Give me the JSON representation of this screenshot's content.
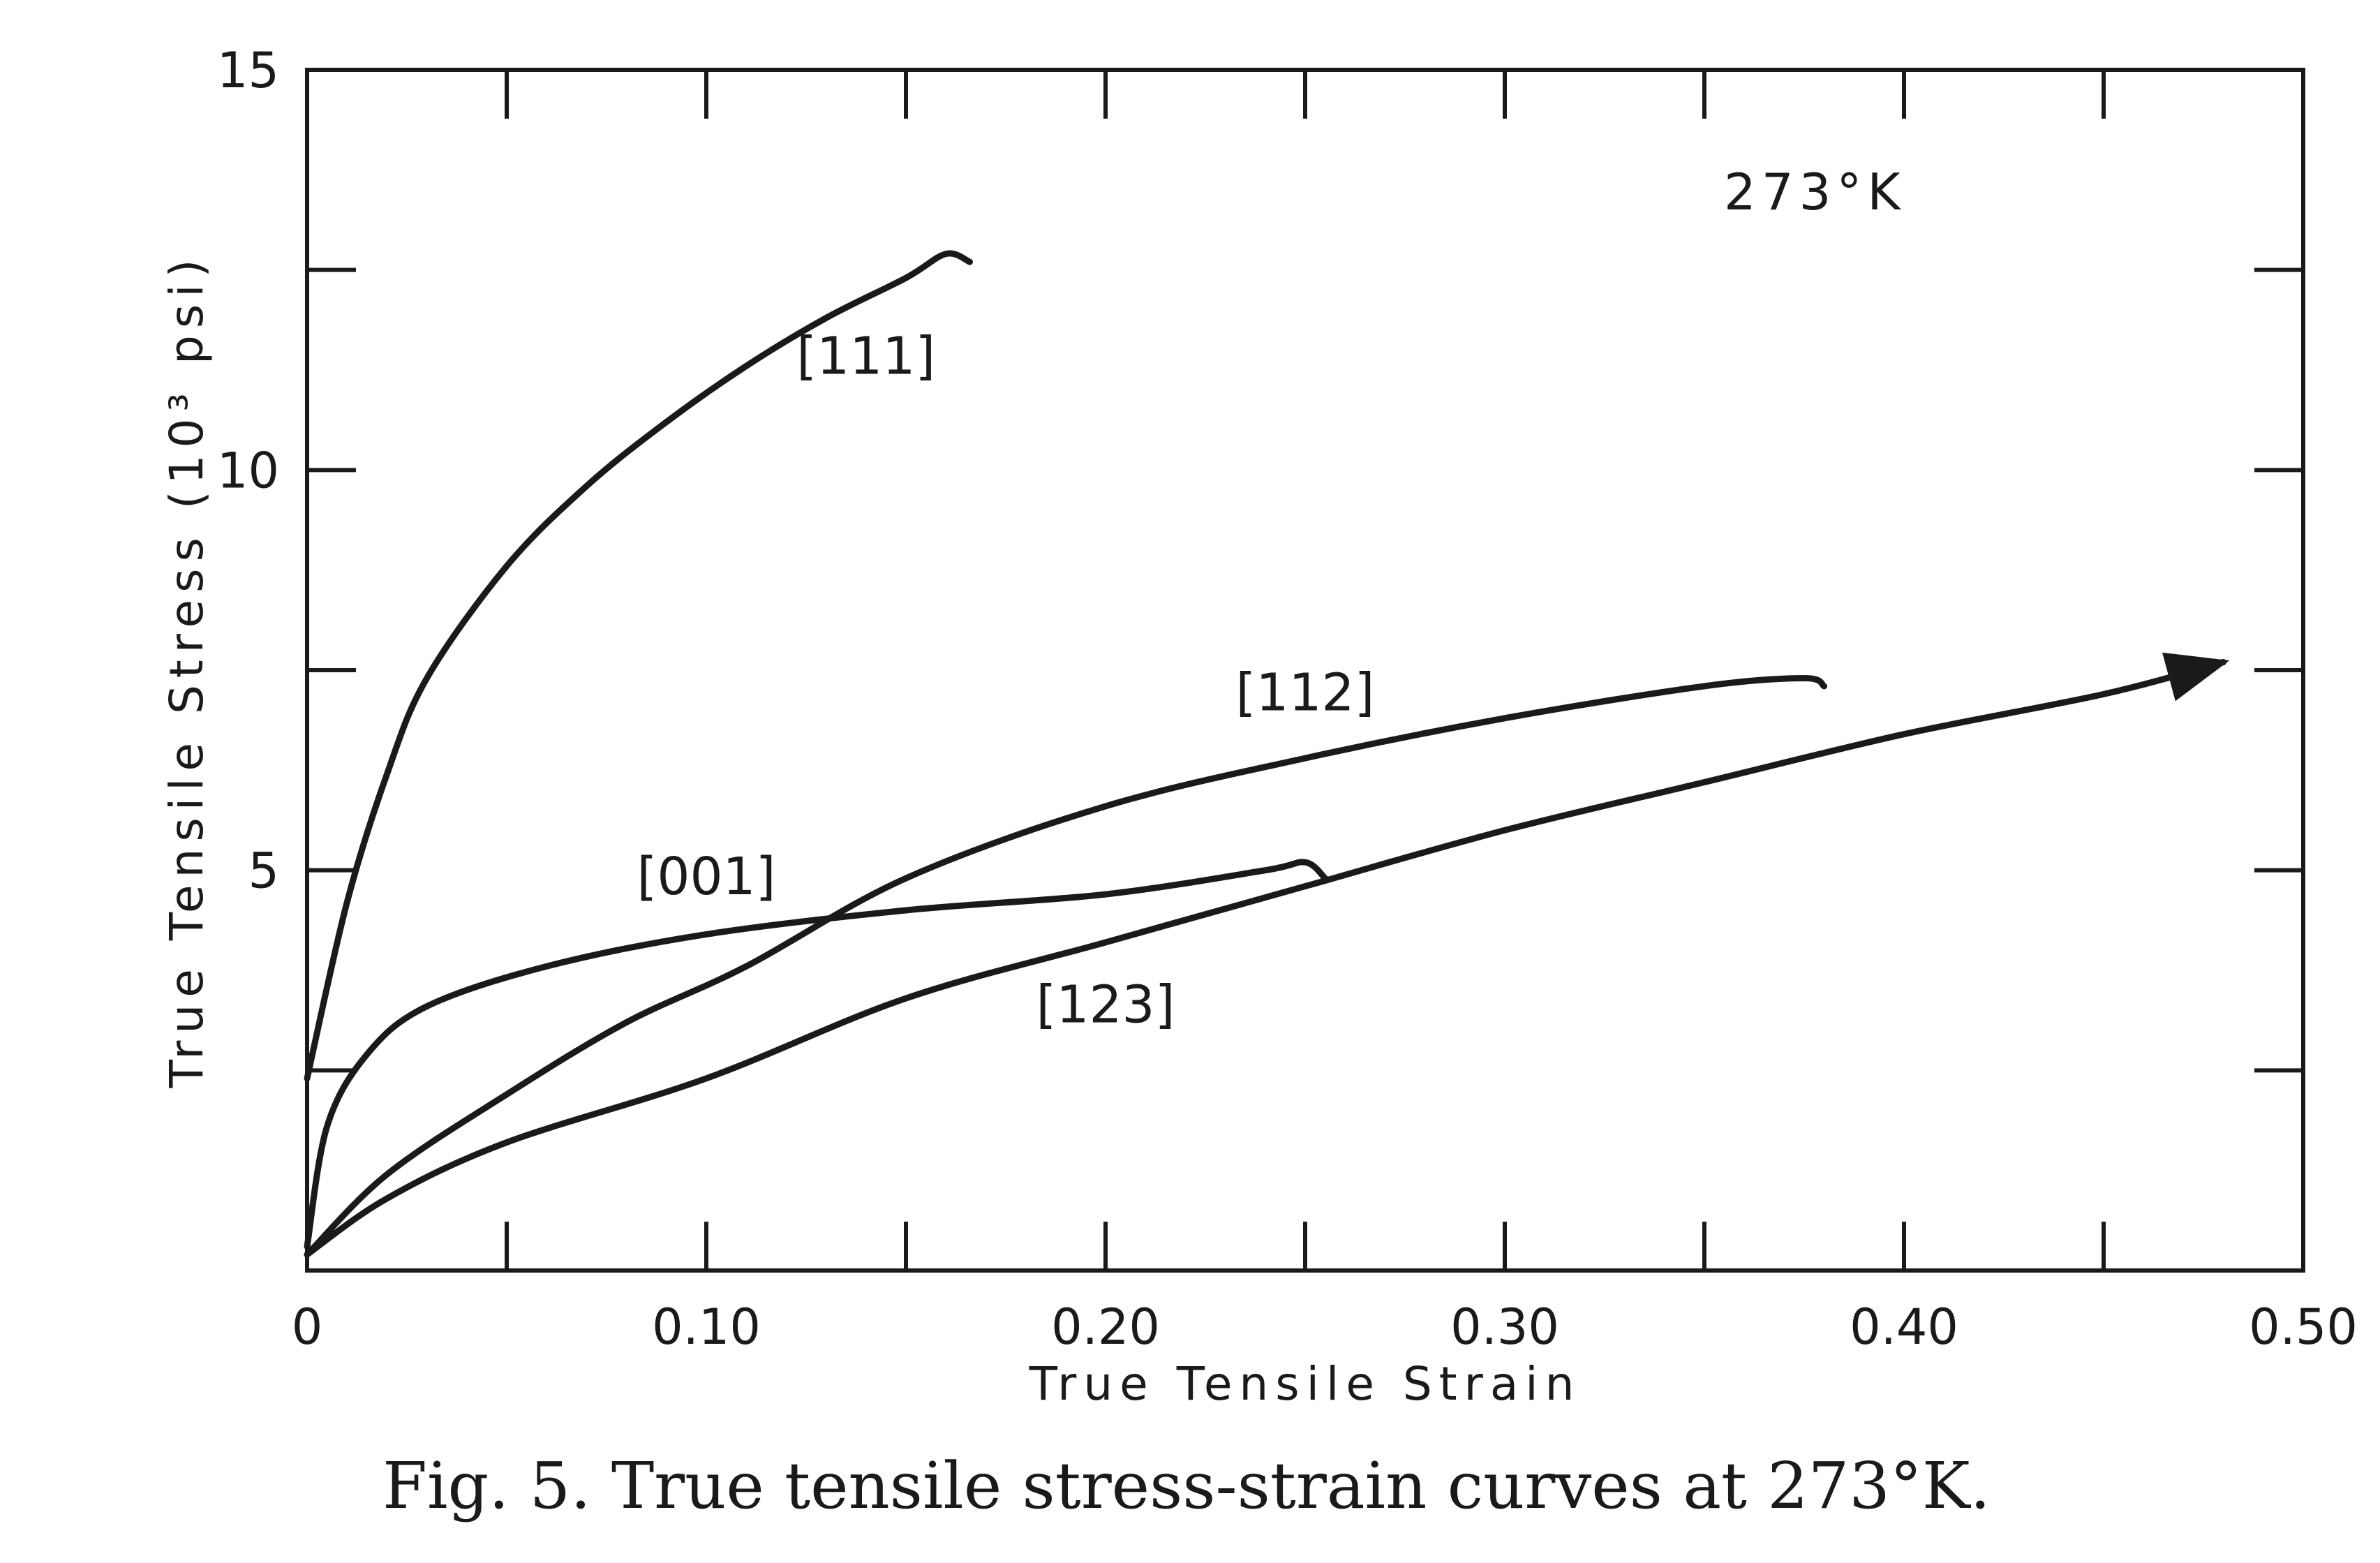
{
  "chart_data": {
    "type": "line",
    "caption": "Fig. 5.  True tensile stress-strain curves at 273°K.",
    "annotation": "273°K",
    "xlabel": "True Tensile Strain",
    "ylabel": "True Tensile Stress (10³ psi)",
    "xlim": [
      0,
      0.5
    ],
    "ylim": [
      0,
      15
    ],
    "x_ticks": [
      0,
      0.05,
      0.1,
      0.15,
      0.2,
      0.25,
      0.3,
      0.35,
      0.4,
      0.45,
      0.5
    ],
    "x_tick_labels": [
      {
        "value": 0,
        "label": "0"
      },
      {
        "value": 0.1,
        "label": "0.10"
      },
      {
        "value": 0.2,
        "label": "0.20"
      },
      {
        "value": 0.3,
        "label": "0.30"
      },
      {
        "value": 0.4,
        "label": "0.40"
      },
      {
        "value": 0.5,
        "label": "0.50"
      }
    ],
    "y_ticks": [
      0,
      2.5,
      5,
      7.5,
      10,
      12.5,
      15
    ],
    "y_tick_labels": [
      {
        "value": 5,
        "label": "5"
      },
      {
        "value": 10,
        "label": "10"
      },
      {
        "value": 15,
        "label": "15"
      }
    ],
    "grid": false,
    "series": [
      {
        "name": "[111]",
        "label_at": [
          0.14,
          11.2
        ],
        "points": [
          [
            0,
            2.4
          ],
          [
            0.01,
            4.6
          ],
          [
            0.02,
            6.2
          ],
          [
            0.03,
            7.4
          ],
          [
            0.05,
            8.8
          ],
          [
            0.07,
            9.8
          ],
          [
            0.09,
            10.6
          ],
          [
            0.11,
            11.3
          ],
          [
            0.13,
            11.9
          ],
          [
            0.15,
            12.4
          ],
          [
            0.16,
            12.7
          ],
          [
            0.166,
            12.6
          ]
        ]
      },
      {
        "name": "[112]",
        "label_at": [
          0.25,
          7.0
        ],
        "points": [
          [
            0,
            0.2
          ],
          [
            0.02,
            1.2
          ],
          [
            0.05,
            2.2
          ],
          [
            0.08,
            3.1
          ],
          [
            0.11,
            3.8
          ],
          [
            0.15,
            4.9
          ],
          [
            0.2,
            5.8
          ],
          [
            0.25,
            6.4
          ],
          [
            0.3,
            6.9
          ],
          [
            0.35,
            7.3
          ],
          [
            0.375,
            7.4
          ],
          [
            0.38,
            7.3
          ]
        ]
      },
      {
        "name": "[001]",
        "label_at": [
          0.1,
          4.7
        ],
        "points": [
          [
            0,
            0.3
          ],
          [
            0.005,
            1.8
          ],
          [
            0.015,
            2.7
          ],
          [
            0.03,
            3.3
          ],
          [
            0.06,
            3.8
          ],
          [
            0.1,
            4.2
          ],
          [
            0.15,
            4.5
          ],
          [
            0.2,
            4.7
          ],
          [
            0.24,
            5.0
          ],
          [
            0.25,
            5.1
          ],
          [
            0.255,
            4.9
          ]
        ]
      },
      {
        "name": "[123]",
        "label_at": [
          0.2,
          3.1
        ],
        "points": [
          [
            0,
            0.2
          ],
          [
            0.02,
            0.9
          ],
          [
            0.05,
            1.6
          ],
          [
            0.1,
            2.4
          ],
          [
            0.15,
            3.4
          ],
          [
            0.2,
            4.1
          ],
          [
            0.25,
            4.8
          ],
          [
            0.3,
            5.5
          ],
          [
            0.35,
            6.1
          ],
          [
            0.4,
            6.7
          ],
          [
            0.45,
            7.2
          ],
          [
            0.48,
            7.6
          ]
        ]
      }
    ]
  }
}
